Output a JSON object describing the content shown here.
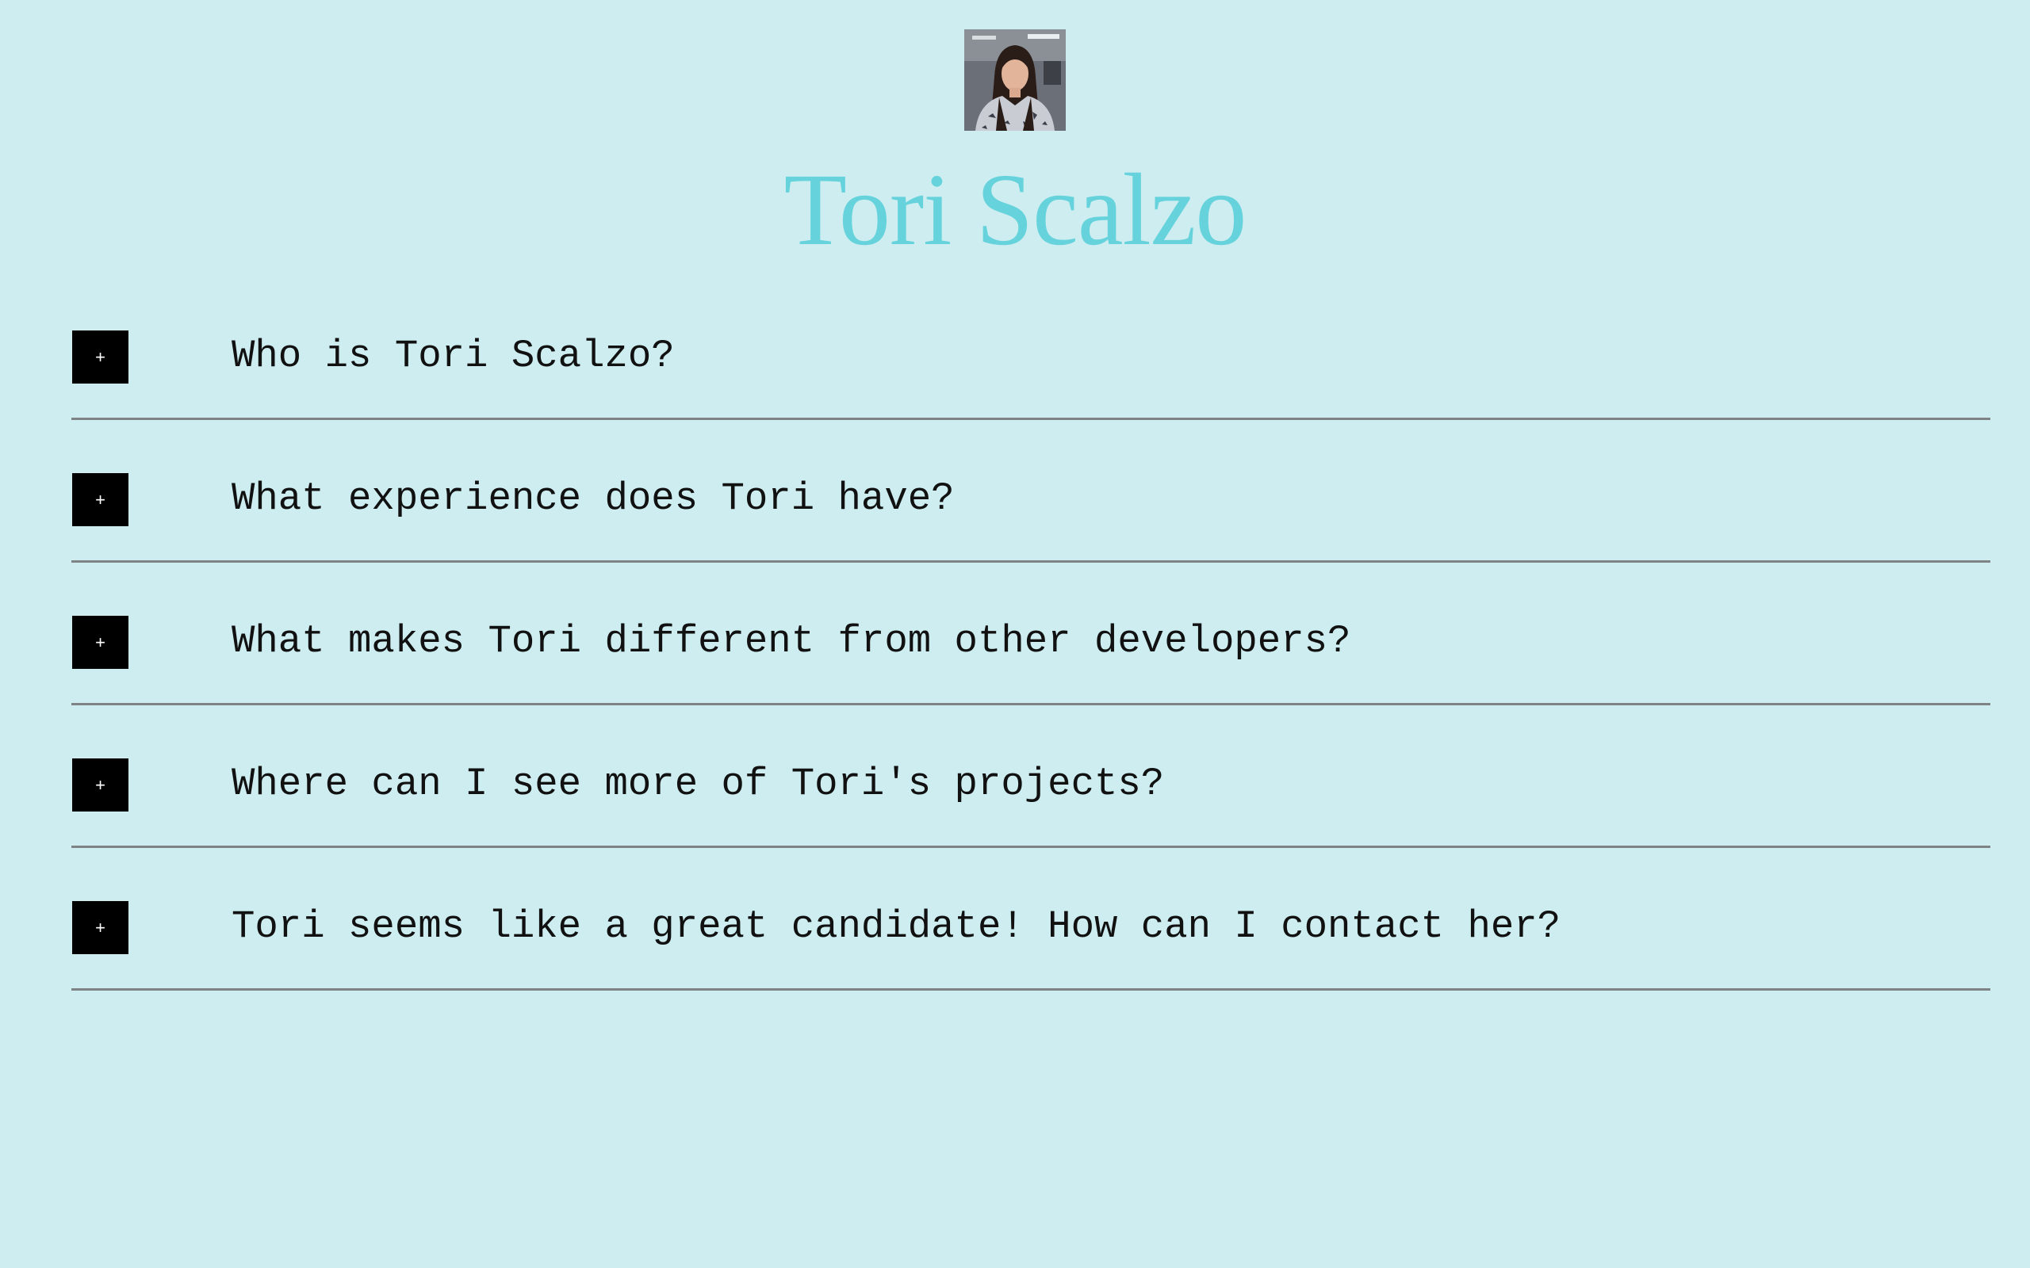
{
  "profile": {
    "name": "Tori Scalzo",
    "avatar_icon": "person-photo-icon"
  },
  "faq": {
    "toggle_label": "+",
    "items": [
      {
        "question": "Who is Tori Scalzo?"
      },
      {
        "question": "What experience does Tori have?"
      },
      {
        "question": "What makes Tori different from other developers?"
      },
      {
        "question": "Where can I see more of Tori's projects?"
      },
      {
        "question": "Tori seems like a great candidate! How can I contact her?"
      }
    ]
  },
  "colors": {
    "background": "#cdedf0",
    "title": "#66d3dc",
    "toggle_bg": "#000000",
    "divider": "#7e8485"
  }
}
